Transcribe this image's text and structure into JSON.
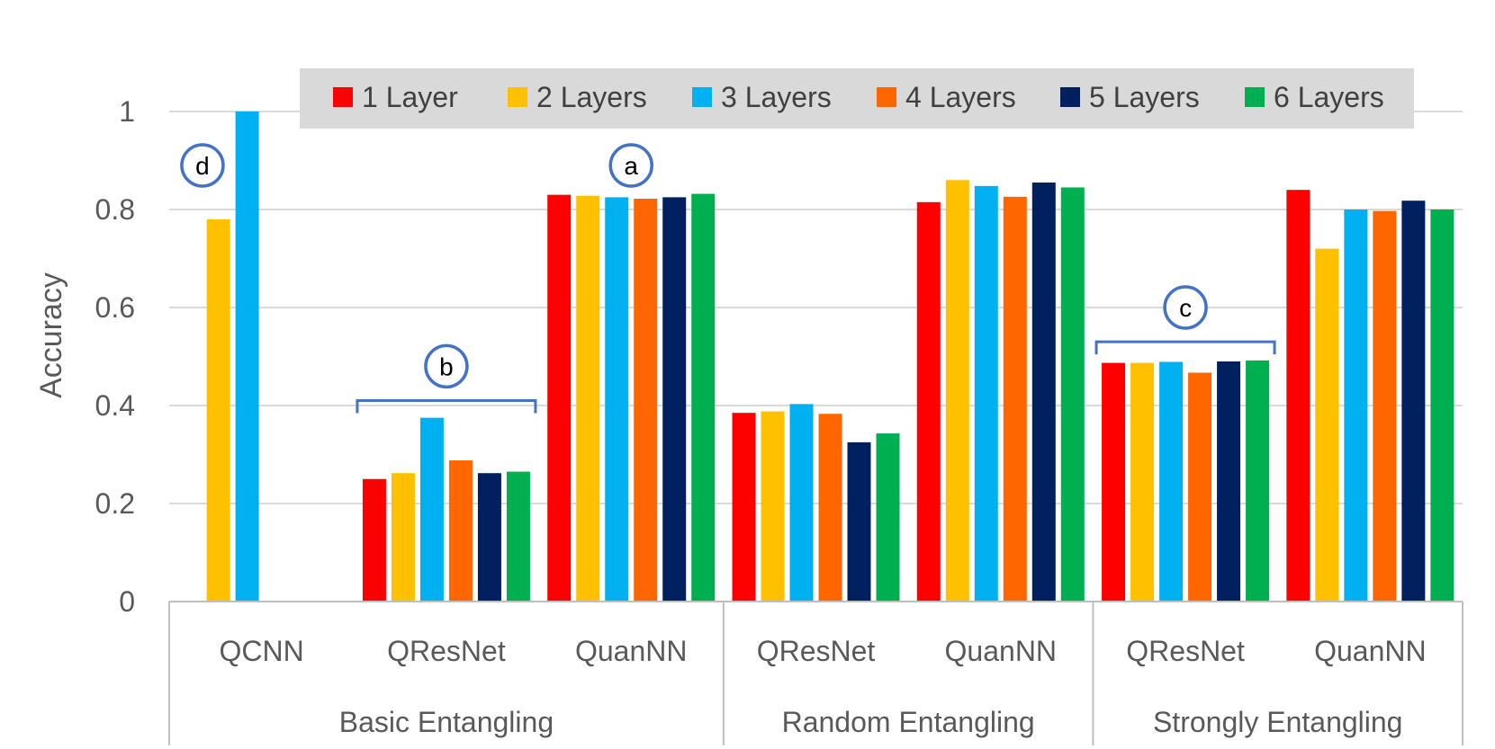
{
  "chart_data": {
    "type": "bar",
    "ylabel": "Accuracy",
    "ylim": [
      0,
      1
    ],
    "yticks": [
      "0",
      "0.2",
      "0.4",
      "0.6",
      "0.8",
      "1"
    ],
    "grid": true,
    "legend_position": "top",
    "groups": [
      {
        "label": "Basic Entangling",
        "categories": [
          "QCNN",
          "QResNet",
          "QuanNN"
        ]
      },
      {
        "label": "Random Entangling",
        "categories": [
          "QResNet",
          "QuanNN"
        ]
      },
      {
        "label": "Strongly Entangling",
        "categories": [
          "QResNet",
          "QuanNN"
        ]
      }
    ],
    "categories": [
      "QCNN",
      "QResNet",
      "QuanNN",
      "QResNet",
      "QuanNN",
      "QResNet",
      "QuanNN"
    ],
    "series": [
      {
        "name": "1 Layer",
        "color": "#FF0000",
        "values": [
          null,
          0.25,
          0.83,
          0.385,
          0.815,
          0.487,
          0.84
        ]
      },
      {
        "name": "2 Layers",
        "color": "#FFC000",
        "values": [
          0.78,
          0.262,
          0.828,
          0.388,
          0.86,
          0.487,
          0.72
        ]
      },
      {
        "name": "3 Layers",
        "color": "#00B0F0",
        "values": [
          1.0,
          0.375,
          0.825,
          0.403,
          0.848,
          0.489,
          0.8
        ]
      },
      {
        "name": "4 Layers",
        "color": "#FF6600",
        "values": [
          null,
          0.288,
          0.822,
          0.383,
          0.826,
          0.467,
          0.797
        ]
      },
      {
        "name": "5 Layers",
        "color": "#002060",
        "values": [
          null,
          0.262,
          0.825,
          0.325,
          0.855,
          0.49,
          0.818
        ]
      },
      {
        "name": "6 Layers",
        "color": "#00B050",
        "values": [
          null,
          0.265,
          0.832,
          0.343,
          0.845,
          0.492,
          0.8
        ]
      }
    ],
    "annotations": [
      {
        "label": "a",
        "category_index": 2,
        "value": 0.89
      },
      {
        "label": "b",
        "category_index": 1,
        "value": 0.48,
        "bracket_value": 0.41
      },
      {
        "label": "c",
        "category_index": 5,
        "value": 0.6,
        "bracket_value": 0.53
      },
      {
        "label": "d",
        "category_index": 0,
        "value": 0.89,
        "offset": -0.32
      }
    ]
  }
}
